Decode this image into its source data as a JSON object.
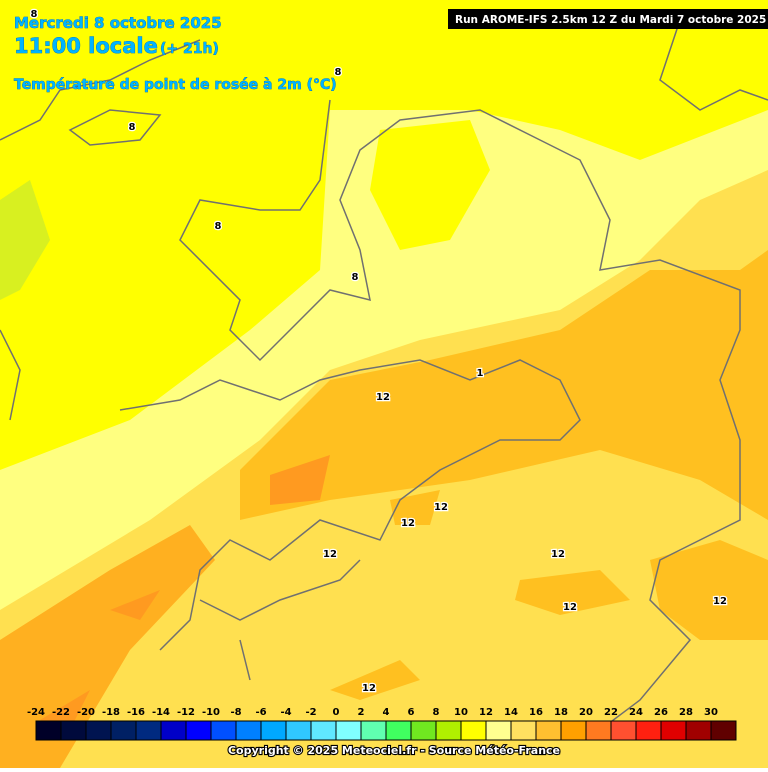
{
  "header": {
    "date": "Mercredi 8 octobre 2025",
    "time": "11:00 locale",
    "lead": "(+ 21h)",
    "field": "Température de point de rosée à 2m (°C)",
    "run": "Run AROME-IFS 2.5km 12 Z du Mardi 7 octobre 2025"
  },
  "contour_labels": [
    "8",
    "8",
    "8",
    "8",
    "8",
    "12",
    "1",
    "12",
    "12",
    "12",
    "12",
    "12",
    "12",
    "12"
  ],
  "colorbar": {
    "ticks": [
      "-24",
      "-22",
      "-20",
      "-18",
      "-16",
      "-14",
      "-12",
      "-10",
      "-8",
      "-6",
      "-4",
      "-2",
      "0",
      "2",
      "4",
      "6",
      "8",
      "10",
      "12",
      "14",
      "16",
      "18",
      "20",
      "22",
      "24",
      "26",
      "28",
      "30"
    ],
    "colors": [
      "#000028",
      "#000a3c",
      "#001450",
      "#002064",
      "#002a80",
      "#0000c8",
      "#0000ff",
      "#0050ff",
      "#0080ff",
      "#00a8ff",
      "#30c8ff",
      "#60e8ff",
      "#80ffff",
      "#60ffb0",
      "#40ff60",
      "#70e820",
      "#b0f000",
      "#ffff00",
      "#ffff90",
      "#ffe060",
      "#ffc030",
      "#ffa000",
      "#ff7a20",
      "#ff5030",
      "#ff2010",
      "#e00000",
      "#a00000",
      "#600000"
    ]
  },
  "copyright": "Copyright © 2025 Meteociel.fr - Source Météo-France"
}
